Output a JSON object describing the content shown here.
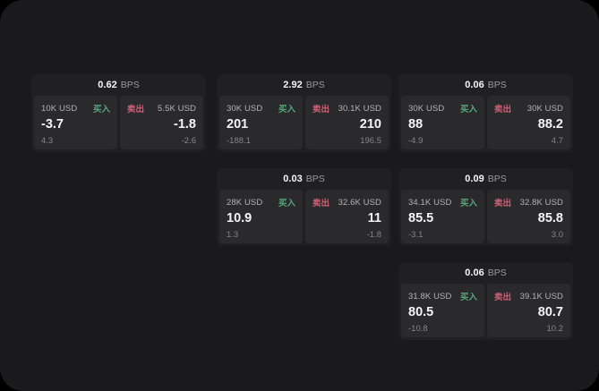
{
  "labels": {
    "bps_unit": "BPS",
    "buy": "买入",
    "sell": "卖出"
  },
  "colors": {
    "page_bg": "#1a1a1c",
    "outer_bg": "#000000",
    "card_bg": "#202023",
    "panel_bg": "#2a2a2d",
    "buy_green": "#57a879",
    "sell_pink": "#cf5f74",
    "label_gray": "#b3b3b6",
    "sub_gray": "#85858a",
    "bps_gray": "#9a9a9e",
    "value_white": "#f5f5f5"
  },
  "cards": [
    {
      "bps": "0.62",
      "col": 1,
      "row": 1,
      "buy": {
        "amount": "10K USD",
        "price": "-3.7",
        "sub": "4.3"
      },
      "sell": {
        "amount": "5.5K USD",
        "price": "-1.8",
        "sub": "-2.6"
      }
    },
    {
      "bps": "2.92",
      "col": 2,
      "row": 1,
      "buy": {
        "amount": "30K USD",
        "price": "201",
        "sub": "-188.1"
      },
      "sell": {
        "amount": "30.1K USD",
        "price": "210",
        "sub": "196.5"
      }
    },
    {
      "bps": "0.06",
      "col": 3,
      "row": 1,
      "buy": {
        "amount": "30K USD",
        "price": "88",
        "sub": "-4.9"
      },
      "sell": {
        "amount": "30K USD",
        "price": "88.2",
        "sub": "4.7"
      }
    },
    {
      "bps": "0.03",
      "col": 2,
      "row": 2,
      "buy": {
        "amount": "28K USD",
        "price": "10.9",
        "sub": "1.3"
      },
      "sell": {
        "amount": "32.6K USD",
        "price": "11",
        "sub": "-1.8"
      }
    },
    {
      "bps": "0.09",
      "col": 3,
      "row": 2,
      "buy": {
        "amount": "34.1K USD",
        "price": "85.5",
        "sub": "-3.1"
      },
      "sell": {
        "amount": "32.8K USD",
        "price": "85.8",
        "sub": "3.0"
      }
    },
    {
      "bps": "0.06",
      "col": 3,
      "row": 3,
      "buy": {
        "amount": "31.8K USD",
        "price": "80.5",
        "sub": "-10.8"
      },
      "sell": {
        "amount": "39.1K USD",
        "price": "80.7",
        "sub": "10.2"
      }
    }
  ]
}
